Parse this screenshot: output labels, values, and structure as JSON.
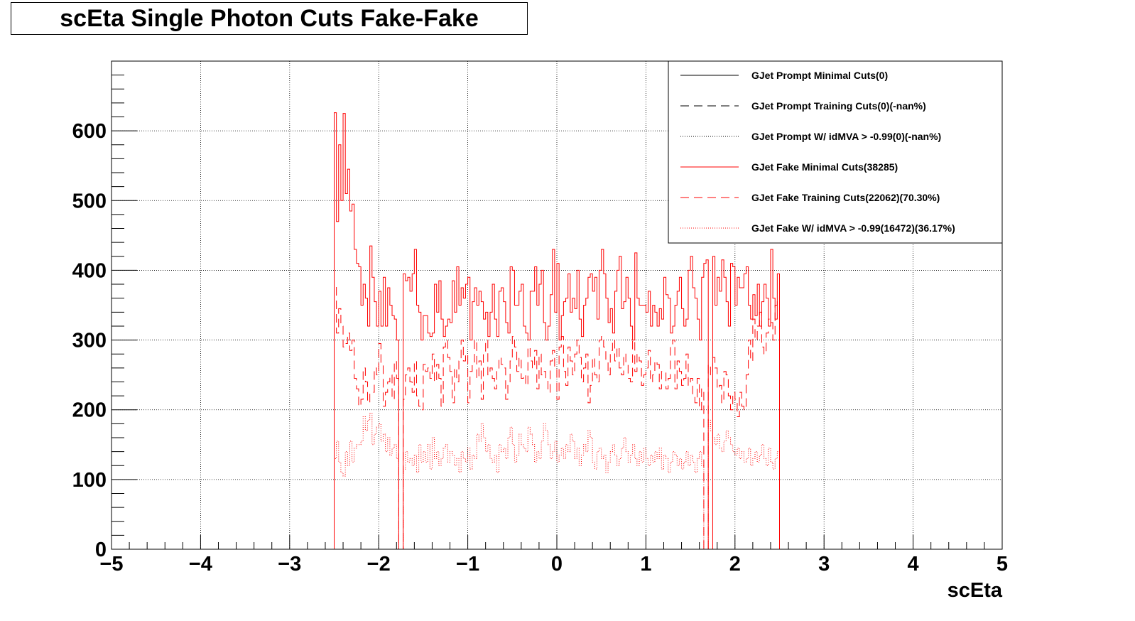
{
  "title": "scEta Single Photon Cuts Fake-Fake",
  "chart_data": {
    "type": "line",
    "title": "scEta Single Photon Cuts Fake-Fake",
    "xlabel": "scEta",
    "ylabel": "",
    "xlim": [
      -5,
      5
    ],
    "ylim": [
      0,
      700
    ],
    "grid": true,
    "legend_position": "top-right",
    "x_ticks": [
      "−5",
      "−4",
      "−3",
      "−2",
      "−1",
      "0",
      "1",
      "2",
      "3",
      "4",
      "5"
    ],
    "y_ticks": [
      "0",
      "100",
      "200",
      "300",
      "400",
      "500",
      "600"
    ],
    "bins": {
      "range": [
        -2.5,
        2.5
      ],
      "count": 200
    },
    "series": [
      {
        "name": "GJet Prompt Minimal Cuts(0)",
        "color": "#000000",
        "style": "solid",
        "values": []
      },
      {
        "name": "GJet Prompt Training Cuts(0)(-nan%)",
        "color": "#000000",
        "style": "dashed",
        "values": []
      },
      {
        "name": "GJet Prompt W/ idMVA > -0.99(0)(-nan%)",
        "color": "#000000",
        "style": "dotted",
        "values": []
      },
      {
        "name": "GJet Fake Minimal Cuts(38285)",
        "color": "#ff0000",
        "style": "solid",
        "values": [
          626,
          470,
          580,
          500,
          625,
          510,
          545,
          485,
          495,
          430,
          410,
          405,
          350,
          380,
          360,
          320,
          435,
          390,
          355,
          320,
          370,
          320,
          390,
          320,
          375,
          350,
          335,
          330,
          300,
          0,
          0,
          395,
          385,
          390,
          370,
          395,
          430,
          350,
          340,
          300,
          335,
          335,
          310,
          305,
          310,
          380,
          340,
          385,
          330,
          305,
          320,
          330,
          325,
          385,
          340,
          405,
          350,
          375,
          360,
          380,
          390,
          300,
          355,
          375,
          350,
          370,
          355,
          330,
          340,
          305,
          340,
          380,
          330,
          305,
          370,
          375,
          355,
          325,
          310,
          405,
          400,
          350,
          350,
          370,
          380,
          320,
          310,
          300,
          370,
          370,
          405,
          350,
          380,
          400,
          325,
          300,
          320,
          365,
          430,
          340,
          410,
          300,
          335,
          355,
          360,
          395,
          340,
          360,
          345,
          400,
          330,
          305,
          350,
          360,
          390,
          395,
          370,
          390,
          330,
          400,
          430,
          395,
          360,
          325,
          345,
          310,
          370,
          400,
          420,
          345,
          355,
          390,
          360,
          320,
          300,
          425,
          360,
          350,
          350,
          350,
          340,
          370,
          320,
          350,
          340,
          320,
          345,
          330,
          390,
          365,
          360,
          310,
          320,
          350,
          370,
          390,
          345,
          320,
          330,
          400,
          420,
          375,
          360,
          330,
          300,
          390,
          410,
          415,
          0,
          0,
          420,
          350,
          390,
          370,
          415,
          390,
          355,
          320,
          410,
          405,
          350,
          390,
          375,
          375,
          395,
          405,
          350,
          330,
          365,
          335,
          380,
          320,
          355,
          380,
          360,
          320,
          430,
          360,
          330,
          395
        ]
      },
      {
        "name": "GJet Fake Training Cuts(22062)(70.30%)",
        "color": "#ff0000",
        "style": "dashed",
        "values": [
          380,
          310,
          345,
          320,
          290,
          295,
          310,
          285,
          300,
          245,
          230,
          205,
          215,
          260,
          240,
          210,
          225,
          225,
          260,
          250,
          295,
          265,
          205,
          225,
          240,
          250,
          215,
          270,
          245,
          0,
          0,
          215,
          250,
          260,
          240,
          225,
          270,
          220,
          205,
          200,
          265,
          255,
          260,
          245,
          280,
          240,
          265,
          245,
          205,
          290,
          300,
          275,
          255,
          210,
          260,
          240,
          270,
          300,
          270,
          280,
          210,
          255,
          265,
          300,
          245,
          270,
          215,
          280,
          300,
          250,
          260,
          245,
          230,
          255,
          275,
          265,
          260,
          215,
          235,
          270,
          305,
          290,
          255,
          275,
          245,
          250,
          235,
          290,
          270,
          260,
          285,
          230,
          280,
          250,
          255,
          245,
          225,
          270,
          285,
          260,
          215,
          290,
          305,
          255,
          235,
          290,
          270,
          250,
          280,
          300,
          275,
          240,
          260,
          280,
          210,
          235,
          275,
          250,
          240,
          300,
          305,
          290,
          270,
          250,
          285,
          300,
          270,
          290,
          260,
          250,
          280,
          265,
          245,
          240,
          300,
          255,
          280,
          270,
          235,
          250,
          260,
          285,
          240,
          250,
          270,
          265,
          230,
          255,
          255,
          230,
          245,
          290,
          300,
          230,
          270,
          255,
          235,
          245,
          280,
          235,
          245,
          220,
          210,
          245,
          200,
          230,
          0,
          0,
          265,
          250,
          275,
          260,
          230,
          235,
          210,
          255,
          250,
          220,
          200,
          225,
          215,
          190,
          225,
          205,
          200,
          250,
          300,
          270,
          330,
          300,
          320,
          340,
          290,
          280,
          310,
          330,
          325,
          300,
          350,
          360
        ]
      },
      {
        "name": "GJet Fake W/ idMVA > -0.99(16472)(36.17%)",
        "color": "#ff0000",
        "style": "dotted",
        "values": [
          130,
          155,
          125,
          110,
          105,
          140,
          120,
          155,
          125,
          145,
          150,
          150,
          155,
          190,
          170,
          185,
          195,
          150,
          165,
          175,
          180,
          155,
          165,
          140,
          160,
          135,
          145,
          150,
          130,
          0,
          0,
          115,
          140,
          125,
          130,
          120,
          135,
          110,
          150,
          125,
          140,
          125,
          150,
          115,
          160,
          130,
          140,
          120,
          130,
          145,
          150,
          125,
          140,
          135,
          120,
          130,
          110,
          140,
          130,
          125,
          145,
          115,
          135,
          130,
          165,
          155,
          180,
          160,
          140,
          150,
          130,
          125,
          135,
          110,
          150,
          140,
          145,
          130,
          160,
          175,
          150,
          125,
          135,
          165,
          150,
          145,
          140,
          175,
          165,
          150,
          125,
          140,
          130,
          155,
          180,
          170,
          150,
          130,
          140,
          155,
          125,
          135,
          145,
          130,
          150,
          140,
          165,
          155,
          130,
          145,
          120,
          135,
          150,
          140,
          170,
          160,
          125,
          115,
          140,
          145,
          130,
          135,
          110,
          125,
          140,
          150,
          135,
          120,
          130,
          145,
          160,
          140,
          125,
          135,
          150,
          130,
          120,
          140,
          125,
          145,
          130,
          120,
          135,
          125,
          140,
          130,
          145,
          115,
          135,
          130,
          110,
          125,
          140,
          135,
          120,
          130,
          115,
          125,
          140,
          120,
          135,
          125,
          110,
          130,
          140,
          120,
          0,
          0,
          185,
          170,
          160,
          150,
          165,
          145,
          140,
          155,
          170,
          160,
          150,
          140,
          135,
          145,
          130,
          140,
          125,
          130,
          145,
          120,
          130,
          140,
          125,
          135,
          150,
          130,
          120,
          145,
          125,
          115,
          130,
          140
        ]
      }
    ]
  }
}
